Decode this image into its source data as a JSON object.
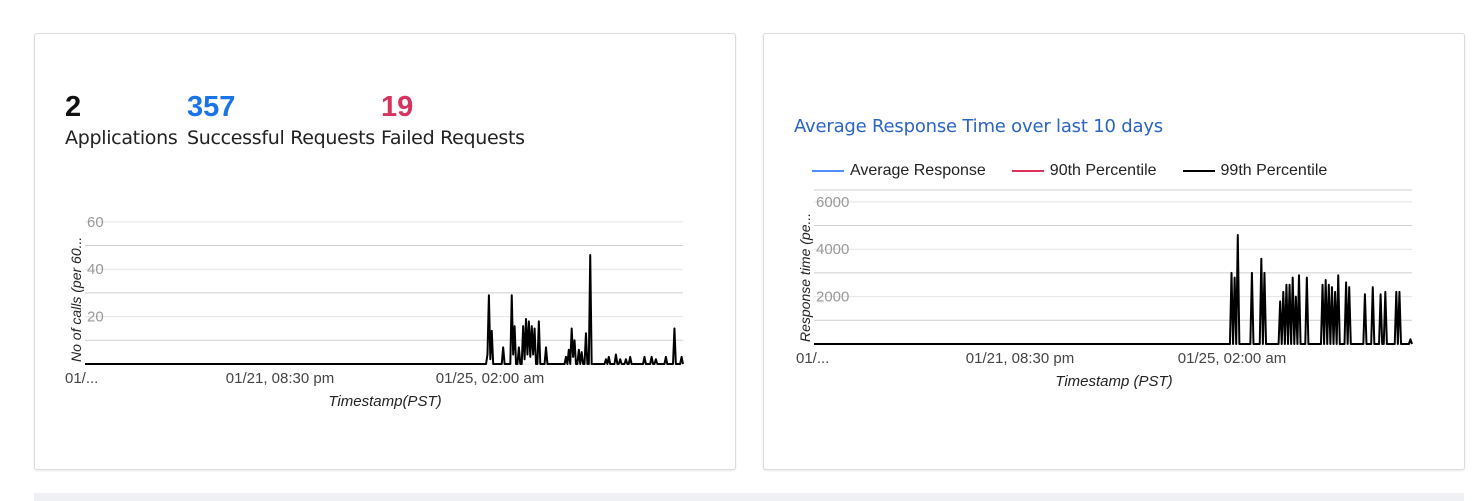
{
  "summary": {
    "applications": {
      "value": "2",
      "label": "Applications",
      "color": "#111111"
    },
    "successful": {
      "value": "357",
      "label": "Successful Requests",
      "color": "#1a73e8"
    },
    "failed": {
      "value": "19",
      "label": "Failed Requests",
      "color": "#d6335e"
    }
  },
  "chart_data": [
    {
      "type": "line",
      "title": "",
      "ylabel": "No of calls (per 60...",
      "xlabel": "Timestamp(PST)",
      "ylim": [
        0,
        65
      ],
      "yticks": [
        "20",
        "40",
        "60"
      ],
      "xticks": [
        "01/...",
        "01/21, 08:30 pm",
        "01/25, 02:00 am"
      ],
      "grid": true,
      "series": [
        {
          "color": "#000000",
          "values": [
            0,
            0,
            0,
            0,
            0,
            0,
            0,
            0,
            0,
            0,
            0,
            0,
            0,
            0,
            0,
            0,
            0,
            0,
            0,
            0,
            0,
            0,
            0,
            0,
            0,
            0,
            0,
            0,
            0,
            0,
            0,
            0,
            0,
            0,
            0,
            0,
            0,
            0,
            0,
            0,
            0,
            0,
            0,
            0,
            0,
            0,
            0,
            0,
            0,
            0,
            0,
            0,
            0,
            0,
            0,
            0,
            0,
            0,
            0,
            0,
            0,
            0,
            0,
            0,
            0,
            0,
            0,
            0,
            0,
            0,
            0,
            0,
            0,
            0,
            0,
            0,
            0,
            0,
            0,
            0,
            0,
            0,
            0,
            0,
            0,
            0,
            0,
            0,
            0,
            0,
            0,
            0,
            0,
            0,
            0,
            0,
            0,
            0,
            0,
            0,
            0,
            0,
            0,
            0,
            0,
            0,
            0,
            0,
            0,
            0,
            0,
            0,
            0,
            0,
            0,
            0,
            0,
            0,
            0,
            0,
            0,
            0,
            0,
            0,
            0,
            0,
            0,
            0,
            0,
            0,
            0,
            0,
            0,
            0,
            0,
            0,
            0,
            0,
            0,
            0,
            0,
            0,
            0,
            0,
            0,
            0,
            0,
            0,
            0,
            0,
            0,
            0,
            0,
            0,
            0,
            0,
            0,
            0,
            0,
            0,
            0,
            0,
            0,
            0,
            0,
            0,
            0,
            0,
            0,
            0,
            0,
            0,
            0,
            0,
            0,
            0,
            0,
            0,
            0,
            0,
            0,
            0,
            0,
            0,
            0,
            0,
            0,
            0,
            0,
            0,
            0,
            0,
            0,
            0,
            0,
            0,
            0,
            0,
            0,
            0,
            0,
            0,
            0,
            0,
            0,
            0,
            0,
            0,
            0,
            0,
            0,
            0,
            0,
            0,
            0,
            0,
            0,
            0,
            0,
            0,
            0,
            0,
            0,
            0,
            0,
            0,
            0,
            0,
            0,
            0,
            0,
            0,
            0,
            0,
            0,
            0,
            0,
            0,
            0,
            0,
            0,
            0,
            0,
            0,
            0,
            0,
            0,
            0,
            0,
            0,
            0,
            0,
            0,
            0,
            0,
            0,
            0,
            0,
            0,
            0,
            0,
            0,
            0,
            0,
            0,
            0,
            0,
            0,
            0,
            0,
            0,
            0,
            0,
            0,
            0,
            0,
            0,
            0,
            0,
            0,
            0,
            0,
            4,
            29,
            2,
            14,
            0,
            0,
            0,
            0,
            0,
            0,
            0,
            7,
            0,
            0,
            0,
            0,
            0,
            29,
            4,
            16,
            0,
            0,
            7,
            0,
            0,
            16,
            2,
            19,
            4,
            18,
            3,
            16,
            4,
            15,
            0,
            0,
            18,
            0,
            0,
            0,
            0,
            7,
            0,
            0,
            0,
            0,
            0,
            0,
            0,
            0,
            0,
            0,
            0,
            0,
            0,
            3,
            0,
            6,
            0,
            15,
            3,
            10,
            0,
            0,
            6,
            0,
            5,
            0,
            0,
            13,
            0,
            0,
            46,
            0,
            0,
            0,
            0,
            0,
            0,
            0,
            0,
            0,
            0,
            2,
            0,
            3,
            0,
            0,
            0,
            0,
            4,
            0,
            0,
            2,
            0,
            0,
            0,
            2,
            0,
            0,
            3,
            0,
            0,
            0,
            0,
            0,
            0,
            0,
            0,
            0,
            3,
            0,
            0,
            0,
            0,
            3,
            0,
            0,
            2,
            0,
            0,
            0,
            0,
            0,
            0,
            3,
            0,
            0,
            0,
            0,
            0,
            15,
            0,
            0,
            0,
            0,
            3,
            0
          ]
        },
        {
          "color": "#d6335e",
          "values": []
        }
      ]
    },
    {
      "type": "line",
      "title": "Average Response Time over last 10 days",
      "ylabel": "Response time (pe...",
      "xlabel": "Timestamp (PST)",
      "ylim": [
        0,
        6500
      ],
      "yticks": [
        "2000",
        "4000",
        "6000"
      ],
      "xticks": [
        "01/...",
        "01/21, 08:30 pm",
        "01/25, 02:00 am"
      ],
      "grid": true,
      "series": [
        {
          "name": "Average Response",
          "color": "#4f8ef7"
        },
        {
          "name": "90th Percentile",
          "color": "#e0325f"
        },
        {
          "name": "99th Percentile",
          "color": "#000000",
          "values": [
            0,
            0,
            0,
            0,
            0,
            0,
            0,
            0,
            0,
            0,
            0,
            0,
            0,
            0,
            0,
            0,
            0,
            0,
            0,
            0,
            0,
            0,
            0,
            0,
            0,
            0,
            0,
            0,
            0,
            0,
            0,
            0,
            0,
            0,
            0,
            0,
            0,
            0,
            0,
            0,
            0,
            0,
            0,
            0,
            0,
            0,
            0,
            0,
            0,
            0,
            0,
            0,
            0,
            0,
            0,
            0,
            0,
            0,
            0,
            0,
            0,
            0,
            0,
            0,
            0,
            0,
            0,
            0,
            0,
            0,
            0,
            0,
            0,
            0,
            0,
            0,
            0,
            0,
            0,
            0,
            0,
            0,
            0,
            0,
            0,
            0,
            0,
            0,
            0,
            0,
            0,
            0,
            0,
            0,
            0,
            0,
            0,
            0,
            0,
            0,
            0,
            0,
            0,
            0,
            0,
            0,
            0,
            0,
            0,
            0,
            0,
            0,
            0,
            0,
            0,
            0,
            0,
            0,
            0,
            0,
            0,
            0,
            0,
            0,
            0,
            0,
            0,
            0,
            0,
            0,
            0,
            0,
            0,
            0,
            0,
            0,
            0,
            0,
            0,
            0,
            0,
            0,
            0,
            0,
            0,
            0,
            0,
            0,
            0,
            0,
            0,
            0,
            0,
            0,
            0,
            0,
            0,
            0,
            0,
            0,
            0,
            0,
            0,
            0,
            0,
            0,
            0,
            0,
            0,
            0,
            0,
            0,
            0,
            0,
            0,
            0,
            0,
            0,
            0,
            0,
            0,
            0,
            0,
            0,
            0,
            0,
            0,
            0,
            0,
            0,
            0,
            0,
            0,
            0,
            0,
            0,
            0,
            0,
            0,
            0,
            0,
            0,
            0,
            0,
            0,
            0,
            0,
            0,
            0,
            0,
            0,
            0,
            0,
            0,
            0,
            0,
            0,
            0,
            0,
            0,
            0,
            0,
            0,
            0,
            0,
            0,
            0,
            0,
            0,
            0,
            0,
            0,
            0,
            0,
            0,
            0,
            0,
            0,
            0,
            0,
            0,
            0,
            0,
            0,
            0,
            0,
            0,
            0,
            0,
            0,
            0,
            0,
            0,
            0,
            0,
            0,
            0,
            0,
            0,
            0,
            0,
            0,
            0,
            0,
            0,
            0,
            3000,
            0,
            2800,
            0,
            4600,
            0,
            0,
            0,
            0,
            0,
            0,
            0,
            0,
            3000,
            0,
            0,
            0,
            0,
            0,
            3600,
            0,
            3000,
            0,
            0,
            0,
            0,
            0,
            0,
            0,
            0,
            0,
            1800,
            0,
            2200,
            0,
            2500,
            0,
            2500,
            0,
            2800,
            0,
            2000,
            0,
            2900,
            0,
            0,
            0,
            0,
            2800,
            0,
            0,
            0,
            0,
            0,
            0,
            0,
            0,
            0,
            2500,
            0,
            2700,
            0,
            2500,
            0,
            2400,
            0,
            2200,
            0,
            2900,
            0,
            0,
            0,
            0,
            2600,
            0,
            2400,
            0,
            0,
            0,
            0,
            0,
            0,
            0,
            0,
            0,
            2100,
            0,
            0,
            0,
            0,
            2400,
            0,
            0,
            0,
            0,
            2100,
            0,
            0,
            2200,
            0,
            0,
            0,
            0,
            0,
            0,
            2200,
            0,
            2200,
            0,
            0,
            0,
            0,
            0,
            0,
            200,
            0
          ]
        }
      ]
    }
  ]
}
